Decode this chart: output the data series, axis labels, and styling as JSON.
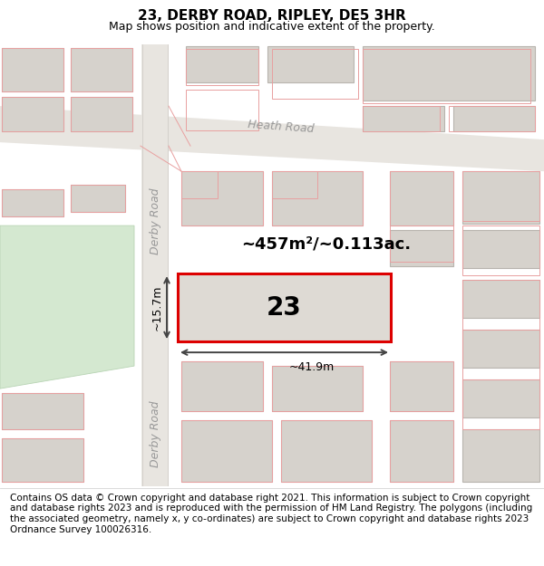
{
  "title": "23, DERBY ROAD, RIPLEY, DE5 3HR",
  "subtitle": "Map shows position and indicative extent of the property.",
  "footer": "Contains OS data © Crown copyright and database right 2021. This information is subject to Crown copyright and database rights 2023 and is reproduced with the permission of HM Land Registry. The polygons (including the associated geometry, namely x, y co-ordinates) are subject to Crown copyright and database rights 2023 Ordnance Survey 100026316.",
  "bg_color": "#ffffff",
  "map_bg": "#f2f0ed",
  "road_fill": "#e8e5e0",
  "building_fill": "#d6d2cc",
  "building_edge": "#b8b4ae",
  "pink_edge": "#e8a0a0",
  "highlight_fill": "#dedad4",
  "highlight_edge": "#dd0000",
  "green_fill": "#d4e8d0",
  "green_edge": "#b8d4b4",
  "road_label_color": "#999999",
  "dim_line_color": "#444444",
  "title_fontsize": 11,
  "subtitle_fontsize": 9,
  "footer_fontsize": 7.5,
  "area_label": "~457m²/~0.113ac.",
  "width_label": "~41.9m",
  "height_label": "~15.7m",
  "number_label": "23",
  "road_label_heath": "Heath Road",
  "road_label_derby1": "Derby Road",
  "road_label_derby2": "Derby Road"
}
